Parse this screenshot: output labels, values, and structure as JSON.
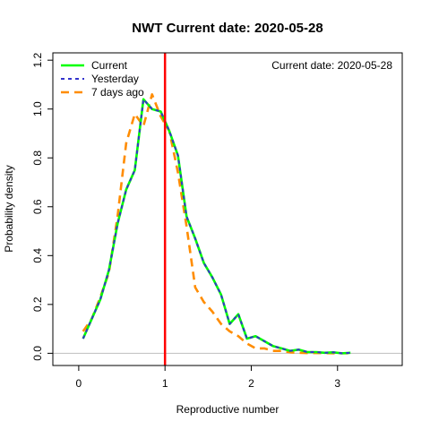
{
  "chart_data": {
    "type": "line",
    "title": "NWT   Current date:  2020-05-28",
    "annotation": "Current date:  2020-05-28",
    "xlabel": "Reproductive number",
    "ylabel": "Probability density",
    "xlim": [
      -0.3,
      3.75
    ],
    "ylim": [
      -0.05,
      1.23
    ],
    "xticks": [
      "0",
      "1",
      "2",
      "3"
    ],
    "yticks": [
      "0.0",
      "0.2",
      "0.4",
      "0.6",
      "0.8",
      "1.0",
      "1.2"
    ],
    "grid": false,
    "legend_position": "top-left",
    "hline": 0,
    "vline": 1,
    "vline_color": "#ff0000",
    "series": [
      {
        "name": "Current",
        "color": "#00ff00",
        "style": "solid",
        "x": [
          0.05,
          0.15,
          0.25,
          0.35,
          0.45,
          0.55,
          0.65,
          0.75,
          0.85,
          0.95,
          1.05,
          1.15,
          1.25,
          1.35,
          1.45,
          1.55,
          1.65,
          1.75,
          1.85,
          1.95,
          2.05,
          2.15,
          2.25,
          2.35,
          2.45,
          2.55,
          2.65,
          2.75,
          2.85,
          2.95,
          3.05,
          3.15
        ],
        "y": [
          0.06,
          0.14,
          0.22,
          0.34,
          0.53,
          0.67,
          0.75,
          1.04,
          1.0,
          0.99,
          0.91,
          0.81,
          0.56,
          0.47,
          0.37,
          0.31,
          0.24,
          0.12,
          0.16,
          0.06,
          0.07,
          0.05,
          0.03,
          0.02,
          0.01,
          0.015,
          0.005,
          0.005,
          0.002,
          0.004,
          0.0,
          0.002
        ]
      },
      {
        "name": "Yesterday",
        "color": "#3333cc",
        "style": "dotted",
        "x": [
          0.05,
          0.15,
          0.25,
          0.35,
          0.45,
          0.55,
          0.65,
          0.75,
          0.85,
          0.95,
          1.05,
          1.15,
          1.25,
          1.35,
          1.45,
          1.55,
          1.65,
          1.75,
          1.85,
          1.95,
          2.05,
          2.15,
          2.25,
          2.35,
          2.45,
          2.55,
          2.65,
          2.75,
          2.85,
          2.95,
          3.05,
          3.15
        ],
        "y": [
          0.06,
          0.14,
          0.22,
          0.34,
          0.53,
          0.67,
          0.75,
          1.04,
          1.0,
          0.99,
          0.91,
          0.81,
          0.56,
          0.47,
          0.37,
          0.31,
          0.24,
          0.12,
          0.16,
          0.06,
          0.07,
          0.05,
          0.03,
          0.02,
          0.01,
          0.015,
          0.005,
          0.005,
          0.002,
          0.004,
          0.0,
          0.002
        ]
      },
      {
        "name": "7 days ago",
        "color": "#ff8c00",
        "style": "dashed",
        "x": [
          0.05,
          0.15,
          0.25,
          0.35,
          0.45,
          0.55,
          0.65,
          0.75,
          0.85,
          0.95,
          1.05,
          1.15,
          1.25,
          1.35,
          1.45,
          1.55,
          1.65,
          1.75,
          1.85,
          1.95,
          2.05,
          2.15,
          2.25,
          2.35,
          2.45,
          2.55,
          2.65,
          2.75,
          2.85,
          2.95,
          3.05,
          3.15
        ],
        "y": [
          0.09,
          0.14,
          0.23,
          0.33,
          0.56,
          0.86,
          0.98,
          0.93,
          1.06,
          0.97,
          0.91,
          0.74,
          0.52,
          0.27,
          0.21,
          0.17,
          0.12,
          0.09,
          0.07,
          0.04,
          0.02,
          0.02,
          0.01,
          0.01,
          0.004,
          0.002,
          0.001,
          0.001,
          0.001,
          0.0,
          0.0,
          0.0
        ]
      }
    ]
  }
}
